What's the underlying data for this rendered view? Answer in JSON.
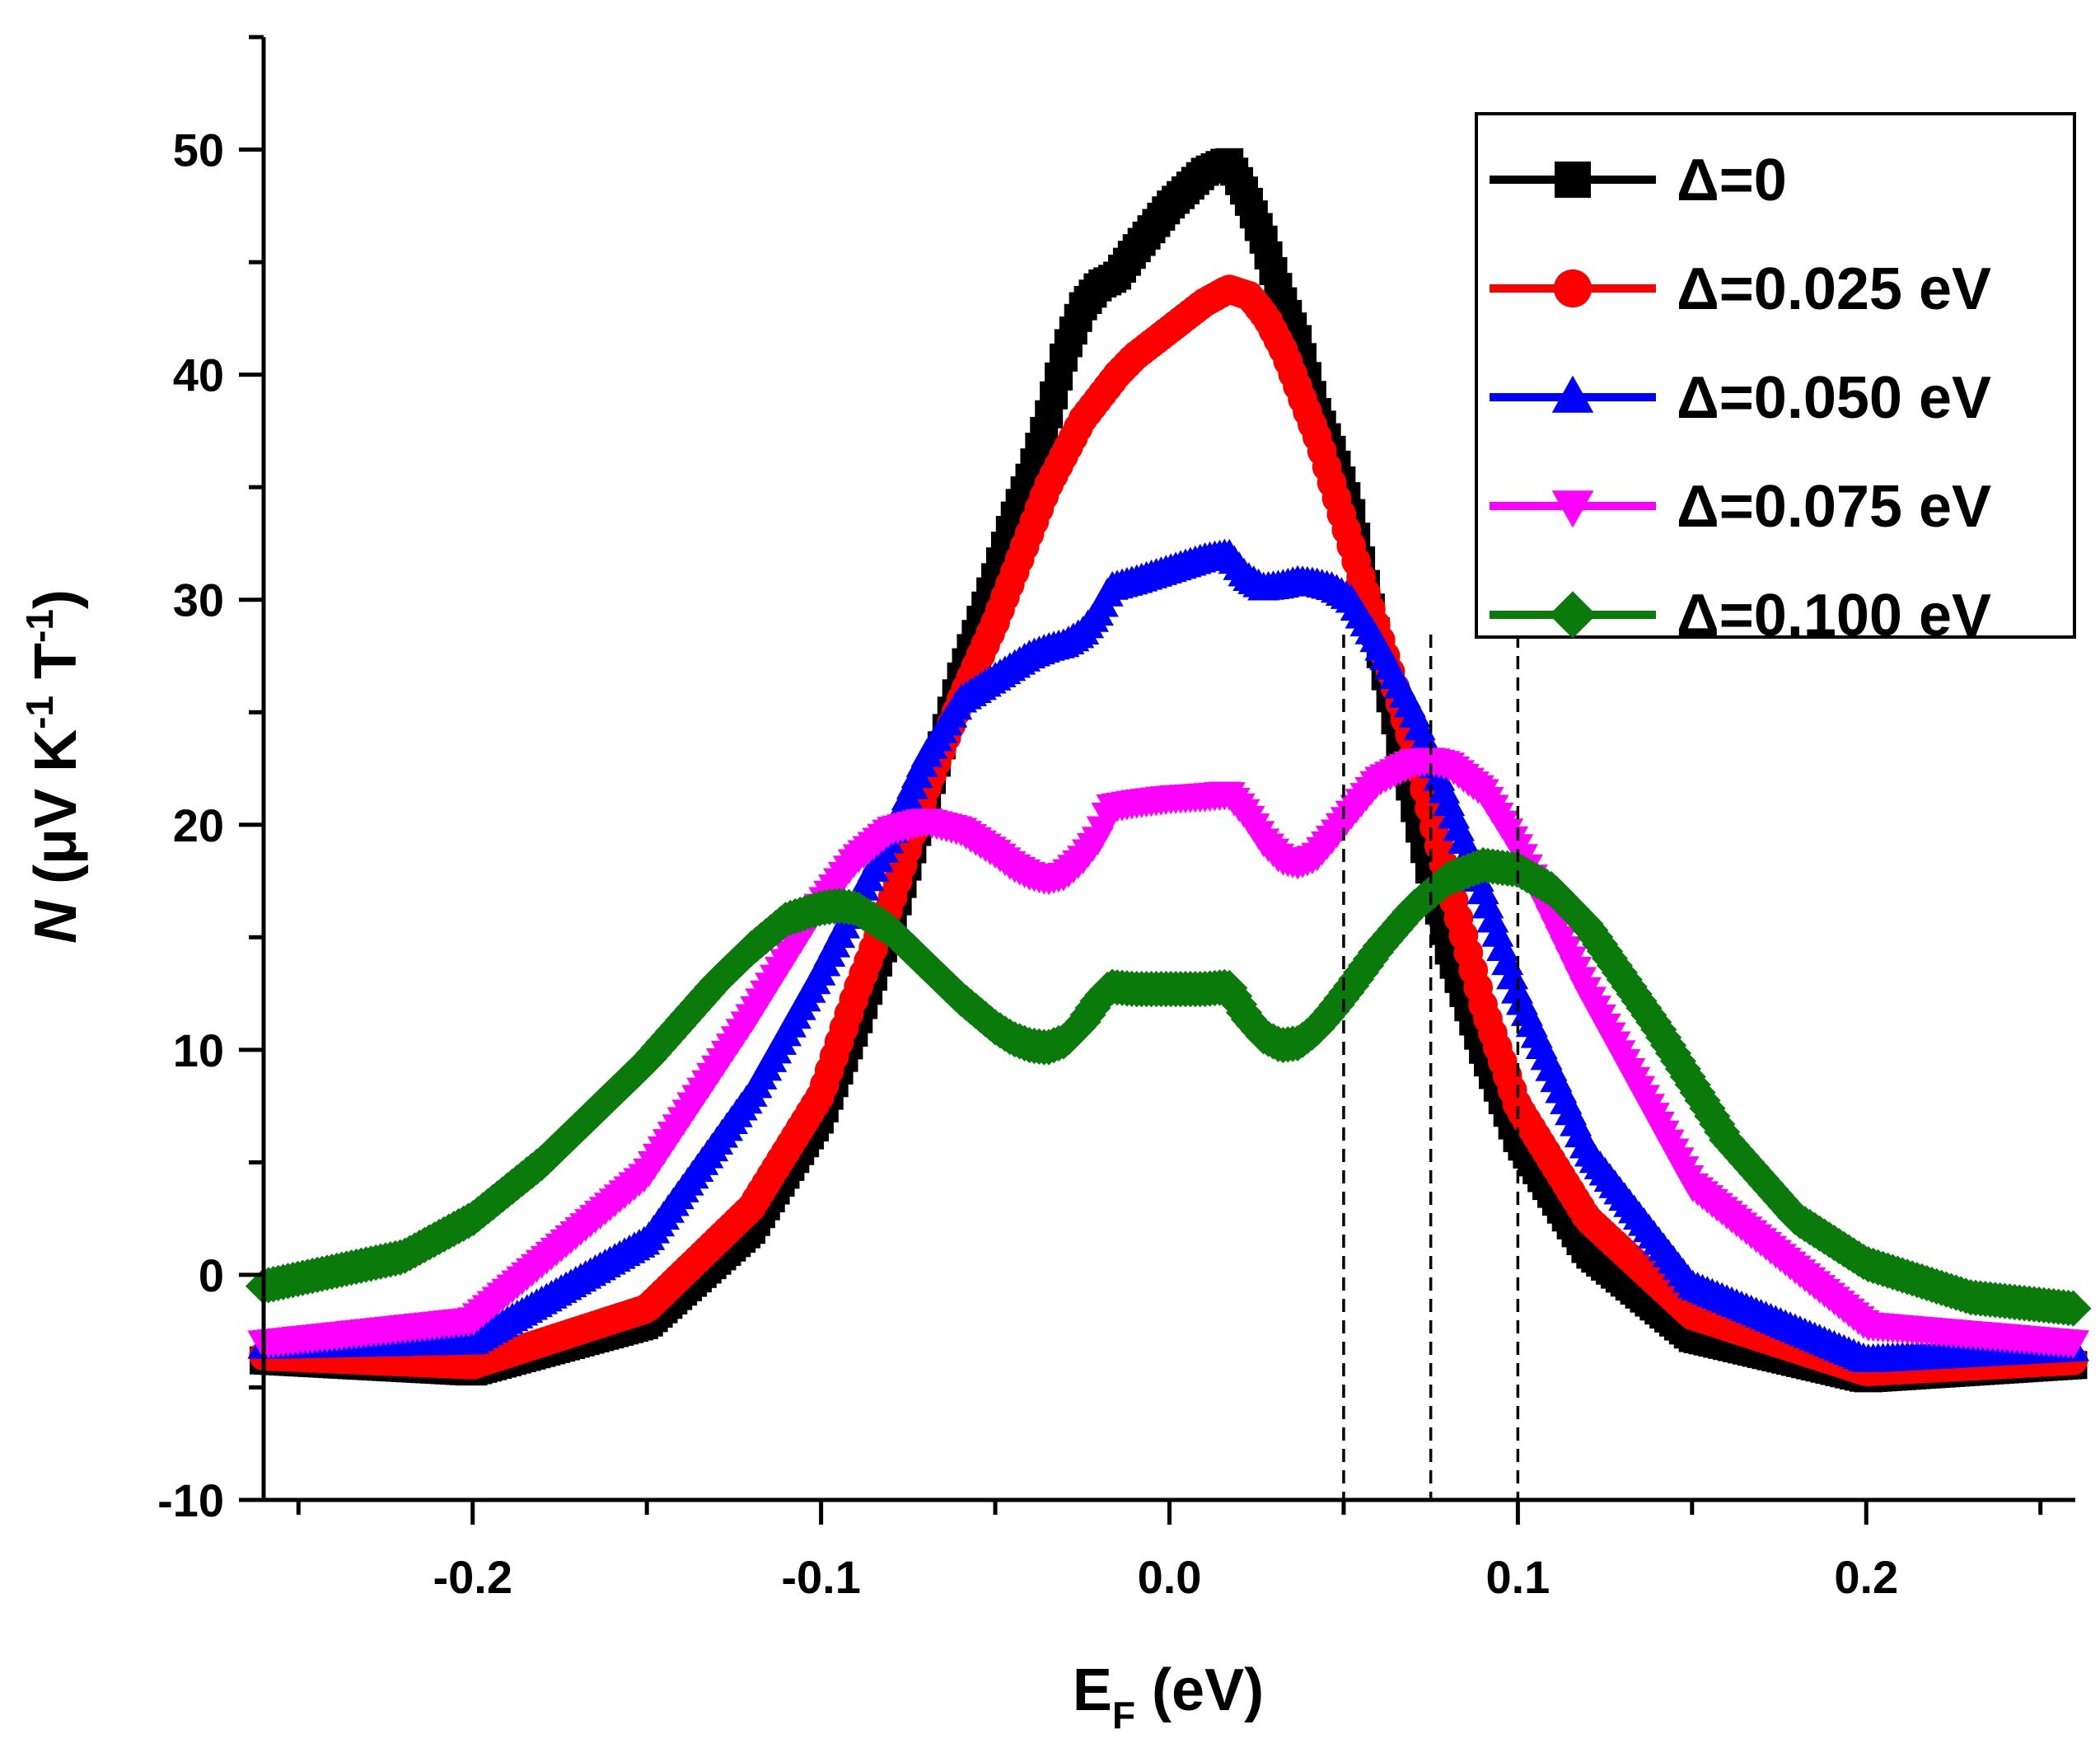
{
  "chart_data": {
    "type": "line",
    "title": "",
    "xlabel": {
      "main": "E",
      "sub": "F",
      "rest": " (eV)"
    },
    "ylabel": {
      "italic": "N",
      "unit_a": " (μV K",
      "sup1": "-1",
      "unit_b": " T",
      "sup2": "-1",
      "unit_c": ")"
    },
    "xlim": [
      -0.26,
      0.26
    ],
    "ylim": [
      -10,
      55
    ],
    "xticks": [
      -0.2,
      -0.1,
      0.0,
      0.1,
      0.2
    ],
    "xtick_labels": [
      "-0.2",
      "-0.1",
      "0.0",
      "0.1",
      "0.2"
    ],
    "xminor_ticks": [
      -0.25,
      -0.15,
      -0.05,
      0.05,
      0.15,
      0.25
    ],
    "yticks": [
      -10,
      0,
      10,
      20,
      30,
      40,
      50
    ],
    "ytick_labels": [
      "-10",
      "0",
      "10",
      "20",
      "30",
      "40",
      "50"
    ],
    "yminor_ticks": [
      -5,
      5,
      15,
      25,
      35,
      45,
      55
    ],
    "grid": false,
    "legend_position": "top-right",
    "reference_lines": {
      "style": "dashed",
      "x": [
        0.05,
        0.075,
        0.1
      ]
    },
    "series": [
      {
        "name": "Δ=0",
        "color": "#000000",
        "marker": "square",
        "x": [
          -0.26,
          -0.2,
          -0.15,
          -0.12,
          -0.1,
          -0.09,
          -0.08,
          -0.07,
          -0.06,
          -0.05,
          -0.045,
          -0.04,
          -0.035,
          -0.03,
          -0.025,
          -0.02,
          -0.017,
          -0.015,
          -0.01,
          0.0,
          0.01,
          0.017,
          0.022,
          0.027,
          0.032,
          0.037,
          0.042,
          0.047,
          0.052,
          0.06,
          0.07,
          0.08,
          0.09,
          0.1,
          0.12,
          0.15,
          0.2,
          0.26
        ],
        "y": [
          -3.8,
          -4.3,
          -2.2,
          2.0,
          7.0,
          11.0,
          15.5,
          21.0,
          26.5,
          31.0,
          33.5,
          35.5,
          38.0,
          41.0,
          43.0,
          44.0,
          44.2,
          44.4,
          45.5,
          47.5,
          49.0,
          49.5,
          48.0,
          46.0,
          43.5,
          41.5,
          38.5,
          36.5,
          34.0,
          28.0,
          21.0,
          14.5,
          10.0,
          6.0,
          1.0,
          -2.8,
          -4.6,
          -4.0
        ]
      },
      {
        "name": "Δ=0.025 eV",
        "color": "#ff0000",
        "marker": "circle",
        "x": [
          -0.26,
          -0.2,
          -0.15,
          -0.12,
          -0.1,
          -0.09,
          -0.08,
          -0.07,
          -0.06,
          -0.05,
          -0.045,
          -0.04,
          -0.035,
          -0.03,
          -0.025,
          -0.02,
          -0.015,
          -0.01,
          0.0,
          0.01,
          0.017,
          0.023,
          0.028,
          0.033,
          0.038,
          0.043,
          0.048,
          0.053,
          0.058,
          0.063,
          0.07,
          0.08,
          0.09,
          0.1,
          0.12,
          0.15,
          0.2,
          0.26
        ],
        "y": [
          -3.6,
          -4.0,
          -1.5,
          3.0,
          8.0,
          12.5,
          16.5,
          21.5,
          25.5,
          29.0,
          31.0,
          33.0,
          35.0,
          36.5,
          38.0,
          39.0,
          40.0,
          40.8,
          42.0,
          43.2,
          43.8,
          43.5,
          42.5,
          41.0,
          39.0,
          37.0,
          34.5,
          32.0,
          29.5,
          27.0,
          23.5,
          17.5,
          12.0,
          7.5,
          2.5,
          -1.8,
          -4.3,
          -3.8
        ]
      },
      {
        "name": "Δ=0.050 eV",
        "color": "#0000ff",
        "marker": "triangle-up",
        "x": [
          -0.26,
          -0.2,
          -0.15,
          -0.12,
          -0.1,
          -0.09,
          -0.08,
          -0.07,
          -0.06,
          -0.05,
          -0.045,
          -0.04,
          -0.035,
          -0.03,
          -0.025,
          -0.02,
          -0.017,
          -0.01,
          0.0,
          0.01,
          0.017,
          0.022,
          0.027,
          0.032,
          0.037,
          0.042,
          0.047,
          0.052,
          0.06,
          0.07,
          0.08,
          0.09,
          0.1,
          0.12,
          0.15,
          0.2,
          0.26
        ],
        "y": [
          -3.2,
          -3.0,
          1.5,
          8.0,
          13.5,
          16.5,
          19.5,
          23.0,
          25.5,
          26.5,
          27.0,
          27.5,
          27.8,
          28.0,
          28.5,
          29.5,
          30.5,
          30.8,
          31.3,
          31.8,
          32.0,
          31.0,
          30.5,
          30.6,
          30.8,
          30.7,
          30.5,
          30.0,
          28.0,
          25.0,
          21.0,
          17.0,
          12.5,
          5.5,
          -0.5,
          -3.8,
          -3.3
        ]
      },
      {
        "name": "Δ=0.075 eV",
        "color": "#ff00ff",
        "marker": "triangle-down",
        "x": [
          -0.26,
          -0.2,
          -0.15,
          -0.12,
          -0.1,
          -0.09,
          -0.08,
          -0.07,
          -0.06,
          -0.05,
          -0.045,
          -0.04,
          -0.035,
          -0.03,
          -0.025,
          -0.02,
          -0.017,
          -0.01,
          0.0,
          0.01,
          0.017,
          0.022,
          0.027,
          0.032,
          0.037,
          0.042,
          0.047,
          0.052,
          0.06,
          0.07,
          0.075,
          0.08,
          0.09,
          0.1,
          0.12,
          0.15,
          0.2,
          0.26
        ],
        "y": [
          -3.0,
          -2.0,
          4.5,
          11.5,
          16.5,
          18.5,
          19.8,
          20.2,
          19.8,
          18.8,
          18.2,
          17.8,
          17.6,
          17.8,
          18.5,
          19.5,
          20.8,
          21.0,
          21.2,
          21.3,
          21.4,
          20.5,
          19.3,
          18.5,
          18.3,
          18.6,
          19.5,
          20.5,
          22.0,
          22.8,
          22.9,
          22.7,
          21.5,
          19.0,
          12.5,
          4.0,
          -2.2,
          -3.0
        ]
      },
      {
        "name": "Δ=0.100 eV",
        "color": "#0a7a0a",
        "marker": "diamond",
        "x": [
          -0.26,
          -0.22,
          -0.2,
          -0.18,
          -0.15,
          -0.13,
          -0.12,
          -0.11,
          -0.1,
          -0.095,
          -0.09,
          -0.08,
          -0.07,
          -0.06,
          -0.05,
          -0.045,
          -0.04,
          -0.035,
          -0.03,
          -0.025,
          -0.02,
          -0.017,
          -0.01,
          0.0,
          0.01,
          0.017,
          0.022,
          0.027,
          0.032,
          0.037,
          0.042,
          0.047,
          0.052,
          0.06,
          0.07,
          0.08,
          0.09,
          0.1,
          0.11,
          0.12,
          0.14,
          0.16,
          0.18,
          0.2,
          0.23,
          0.26
        ],
        "y": [
          -0.5,
          0.8,
          2.5,
          5.0,
          9.5,
          13.0,
          14.5,
          15.8,
          16.3,
          16.4,
          16.3,
          15.3,
          13.8,
          12.3,
          11.0,
          10.5,
          10.2,
          10.1,
          10.4,
          11.2,
          12.3,
          12.8,
          12.7,
          12.7,
          12.7,
          12.8,
          11.5,
          10.6,
          10.2,
          10.3,
          10.9,
          11.8,
          12.8,
          14.5,
          16.3,
          17.6,
          18.2,
          18.0,
          17.1,
          15.5,
          11.0,
          6.0,
          2.5,
          0.5,
          -1.0,
          -1.5
        ]
      }
    ]
  }
}
